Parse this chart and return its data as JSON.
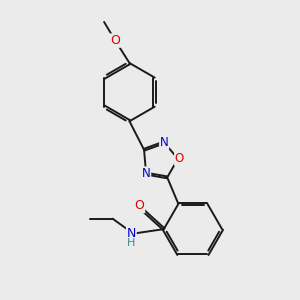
{
  "background_color": "#ebebeb",
  "bond_color": "#1a1a1a",
  "atom_colors": {
    "N": "#0000cc",
    "O": "#dd0000",
    "H": "#3a8a8a",
    "C": "#1a1a1a"
  },
  "figsize": [
    3.0,
    3.0
  ],
  "dpi": 100
}
